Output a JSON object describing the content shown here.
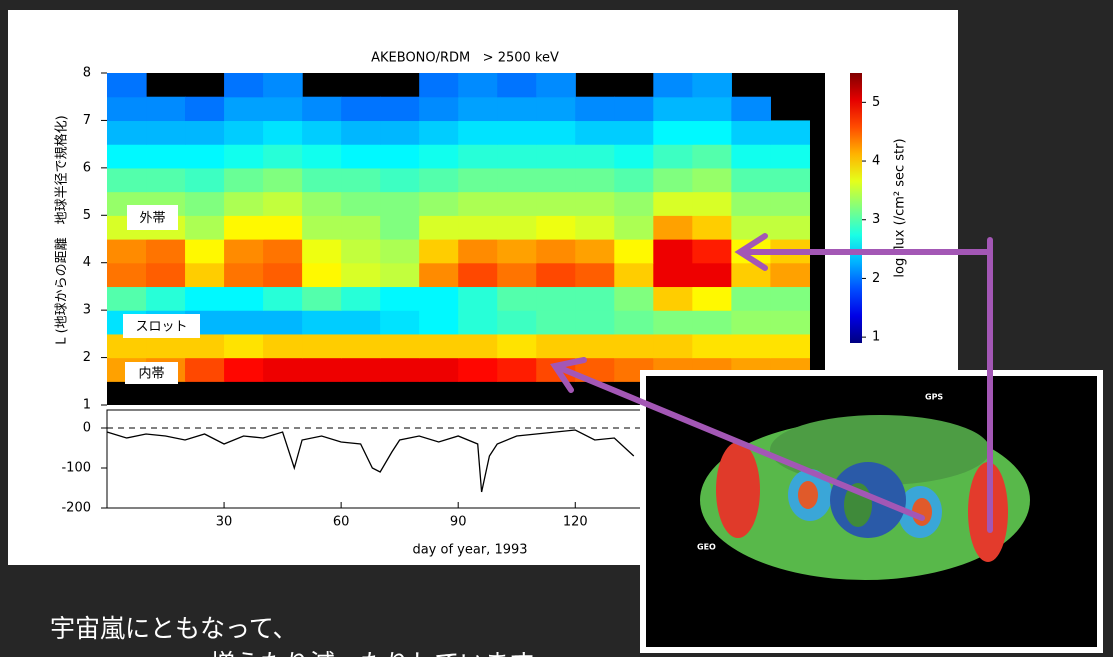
{
  "chart_data": [
    {
      "type": "heatmap",
      "title": "AKEBONO/RDM   > 2500 keV",
      "y_label": "L (地球からの距離　地球半径で規格化)",
      "colorbar_label": "log flux (/cm² sec str)",
      "xlim": [
        0,
        184
      ],
      "ylim": [
        1,
        8
      ],
      "yticks": [
        1,
        2,
        3,
        4,
        5,
        6,
        7,
        8
      ],
      "zlim": [
        0.9,
        5.5
      ],
      "zticks": [
        1,
        2,
        3,
        4,
        5
      ],
      "annotations": [
        "外帯",
        "スロット",
        "内帯"
      ],
      "x_bins": [
        0,
        10,
        20,
        30,
        40,
        50,
        60,
        70,
        80,
        90,
        100,
        110,
        120,
        130,
        140,
        150,
        160,
        170,
        180
      ],
      "y_bins": [
        1.5,
        2,
        2.5,
        3,
        3.5,
        4,
        4.5,
        5,
        5.5,
        6,
        6.5,
        7,
        7.5,
        8
      ],
      "z": [
        [
          4.2,
          4.3,
          4.6,
          4.9,
          5,
          5,
          5,
          5,
          5,
          4.9,
          4.8,
          4.6,
          4.5,
          4.4,
          4.3,
          4.3,
          4.2,
          4.2
        ],
        [
          4,
          4,
          4,
          3.9,
          4,
          4,
          4,
          4,
          4,
          4,
          3.9,
          4,
          4,
          4,
          4,
          3.9,
          3.9,
          3.9
        ],
        [
          2.5,
          2.4,
          2.3,
          2.3,
          2.3,
          2.4,
          2.4,
          2.5,
          2.6,
          2.8,
          2.9,
          3,
          3,
          3.1,
          3.2,
          3.2,
          3.3,
          3.3
        ],
        [
          3,
          2.8,
          2.6,
          2.6,
          2.8,
          3,
          2.8,
          2.6,
          2.6,
          2.8,
          3,
          3,
          3,
          3.2,
          4,
          3.8,
          3.2,
          3.2
        ],
        [
          4.4,
          4.5,
          4,
          4.4,
          4.5,
          3.8,
          3.6,
          3.5,
          4.3,
          4.6,
          4.4,
          4.6,
          4.5,
          4,
          5,
          5,
          4,
          4.2
        ],
        [
          4.3,
          4.4,
          3.8,
          4.3,
          4.4,
          3.7,
          3.5,
          3.4,
          4,
          4.3,
          4.2,
          4.3,
          4.2,
          3.8,
          5,
          4.8,
          3.8,
          4
        ],
        [
          3.6,
          3.6,
          3.4,
          3.8,
          3.8,
          3.4,
          3.4,
          3.2,
          3.6,
          3.6,
          3.6,
          3.7,
          3.6,
          3.4,
          4.2,
          4,
          3.5,
          3.5
        ],
        [
          3.3,
          3.3,
          3.2,
          3.4,
          3.5,
          3.3,
          3.2,
          3.2,
          3.3,
          3.4,
          3.4,
          3.4,
          3.4,
          3.3,
          3.6,
          3.6,
          3.3,
          3.3
        ],
        [
          3,
          3,
          2.9,
          3.1,
          3.2,
          3,
          3,
          2.9,
          3,
          3.1,
          3.1,
          3.1,
          3.1,
          3,
          3.2,
          3.3,
          3,
          3
        ],
        [
          2.6,
          2.6,
          2.6,
          2.7,
          2.8,
          2.7,
          2.6,
          2.6,
          2.7,
          2.8,
          2.8,
          2.8,
          2.8,
          2.7,
          2.9,
          3,
          2.7,
          2.7
        ],
        [
          2.3,
          2.3,
          2.3,
          2.4,
          2.5,
          2.4,
          2.3,
          2.3,
          2.4,
          2.5,
          2.5,
          2.5,
          2.4,
          2.4,
          2.6,
          2.6,
          2.4,
          2.4
        ],
        [
          2.1,
          2.1,
          2,
          2.2,
          2.2,
          2.1,
          2,
          2,
          2.1,
          2.2,
          2.2,
          2.2,
          2.1,
          2.1,
          2.3,
          2.3,
          2.1,
          null
        ],
        [
          2,
          null,
          null,
          2,
          2.1,
          null,
          null,
          null,
          2,
          2.1,
          2,
          2.1,
          null,
          null,
          2.1,
          2.2,
          null,
          null
        ]
      ]
    },
    {
      "type": "line",
      "x_label": "day of year, 1993",
      "color": "#000000",
      "xlim": [
        0,
        184
      ],
      "xticks": [
        30,
        60,
        90,
        120
      ],
      "ylim": [
        -200,
        45
      ],
      "yticks": [
        0,
        -100,
        -200
      ],
      "x": [
        0,
        5,
        10,
        15,
        20,
        25,
        30,
        35,
        40,
        45,
        48,
        50,
        55,
        60,
        65,
        68,
        70,
        73,
        75,
        80,
        85,
        90,
        95,
        96,
        98,
        100,
        105,
        110,
        115,
        120,
        125,
        130,
        135
      ],
      "values": [
        -10,
        -25,
        -15,
        -20,
        -30,
        -15,
        -40,
        -20,
        -25,
        -10,
        -100,
        -30,
        -20,
        -35,
        -40,
        -100,
        -110,
        -60,
        -30,
        -20,
        -35,
        -20,
        -40,
        -160,
        -70,
        -40,
        -20,
        -15,
        -10,
        -5,
        -30,
        -25,
        -70
      ]
    }
  ],
  "inset": {
    "labels": [
      "GPS",
      "GEO"
    ]
  },
  "caption": [
    "宇宙嵐にともなって、",
    "増えたり減ったりしています。"
  ]
}
